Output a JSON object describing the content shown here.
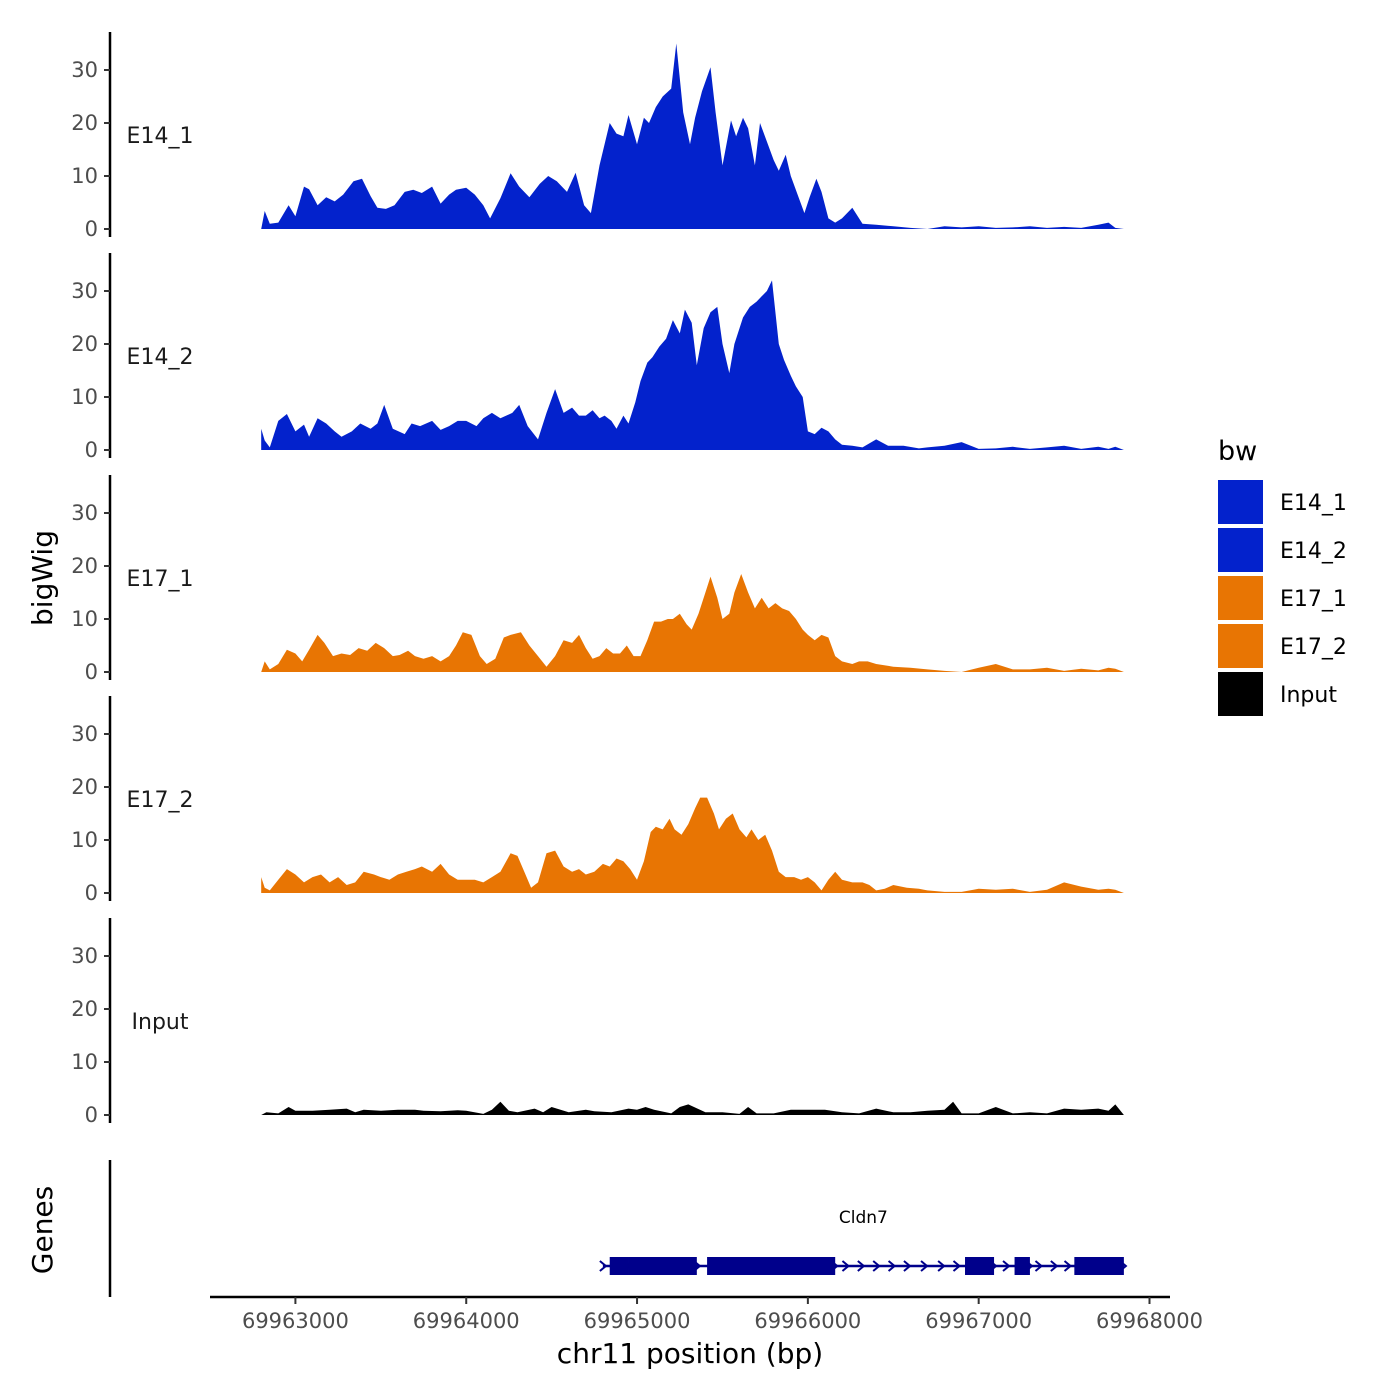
{
  "chart_data": {
    "type": "area",
    "xlabel": "chr11 position (bp)",
    "ylabel": "bigWig",
    "genes_label": "Genes",
    "xlim": [
      69962500,
      69968120
    ],
    "data_xrange": [
      69962800,
      69967850
    ],
    "ylim": [
      0,
      36
    ],
    "yticks": [
      0,
      10,
      20,
      30
    ],
    "xticks": [
      69963000,
      69964000,
      69965000,
      69966000,
      69967000,
      69968000
    ],
    "xtick_labels": [
      "69963000",
      "69964000",
      "69965000",
      "69966000",
      "69967000",
      "69968000"
    ],
    "legend": {
      "title": "bw",
      "items": [
        {
          "label": "E14_1",
          "color": "#0322cc"
        },
        {
          "label": "E14_2",
          "color": "#0322cc"
        },
        {
          "label": "E17_1",
          "color": "#e87503"
        },
        {
          "label": "E17_2",
          "color": "#e87503"
        },
        {
          "label": "Input",
          "color": "#000000"
        }
      ]
    },
    "series": [
      {
        "name": "E14_1",
        "color": "#0322cc",
        "x": [
          69962800,
          69962820,
          69962850,
          69962900,
          69962960,
          69963000,
          69963050,
          69963080,
          69963130,
          69963180,
          69963230,
          69963280,
          69963340,
          69963390,
          69963440,
          69963480,
          69963530,
          69963580,
          69963640,
          69963690,
          69963740,
          69963800,
          69963850,
          69963900,
          69963940,
          69964000,
          69964050,
          69964100,
          69964140,
          69964200,
          69964260,
          69964310,
          69964370,
          69964430,
          69964480,
          69964530,
          69964590,
          69964640,
          69964690,
          69964730,
          69964780,
          69964840,
          69964880,
          69964920,
          69964950,
          69965000,
          69965040,
          69965070,
          69965110,
          69965150,
          69965200,
          69965230,
          69965270,
          69965310,
          69965340,
          69965380,
          69965430,
          69965460,
          69965500,
          69965550,
          69965580,
          69965620,
          69965650,
          69965690,
          69965720,
          69965760,
          69965800,
          69965830,
          69965870,
          69965900,
          69965940,
          69965980,
          69966010,
          69966050,
          69966080,
          69966120,
          69966160,
          69966200,
          69966260,
          69966320,
          69966400,
          69966500,
          69966600,
          69966700,
          69966800,
          69966900,
          69967000,
          69967100,
          69967200,
          69967300,
          69967400,
          69967500,
          69967600,
          69967700,
          69967760,
          69967800,
          69967850
        ],
        "y": [
          0,
          3.4,
          1,
          1.2,
          4.5,
          2.4,
          8,
          7.5,
          4.5,
          6,
          5.2,
          6.5,
          9,
          9.5,
          6.2,
          4,
          3.8,
          4.5,
          7,
          7.4,
          6.8,
          8,
          4.8,
          6.5,
          7.4,
          7.8,
          6.5,
          4.5,
          2,
          5.8,
          10.5,
          8,
          6,
          8.5,
          10,
          9,
          7,
          10.6,
          4.5,
          3,
          12,
          20,
          18,
          17.5,
          21.5,
          16,
          21,
          20,
          23,
          25,
          26.5,
          35,
          22,
          16,
          21,
          26,
          30.5,
          22,
          12,
          20.5,
          17.5,
          21,
          19,
          12,
          20,
          16.5,
          13,
          11,
          14,
          10,
          6.5,
          3,
          6,
          9.5,
          7,
          2,
          1.2,
          2,
          4,
          1,
          0.8,
          0.5,
          0.2,
          0,
          0.5,
          0.3,
          0.5,
          0.2,
          0.3,
          0.5,
          0.2,
          0.4,
          0.2,
          0.8,
          1.2,
          0.2,
          0
        ]
      },
      {
        "name": "E14_2",
        "color": "#0322cc",
        "x": [
          69962800,
          69962820,
          69962850,
          69962900,
          69962950,
          69963000,
          69963050,
          69963080,
          69963130,
          69963180,
          69963230,
          69963270,
          69963330,
          69963380,
          69963440,
          69963480,
          69963520,
          69963570,
          69963640,
          69963680,
          69963730,
          69963800,
          69963850,
          69963900,
          69963950,
          69964000,
          69964060,
          69964100,
          69964150,
          69964200,
          69964270,
          69964310,
          69964360,
          69964420,
          69964470,
          69964520,
          69964570,
          69964620,
          69964660,
          69964700,
          69964740,
          69964780,
          69964810,
          69964850,
          69964880,
          69964920,
          69964950,
          69964990,
          69965020,
          69965060,
          69965090,
          69965130,
          69965170,
          69965210,
          69965250,
          69965280,
          69965320,
          69965350,
          69965390,
          69965430,
          69965470,
          69965500,
          69965540,
          69965570,
          69965620,
          69965660,
          69965700,
          69965730,
          69965760,
          69965790,
          69965830,
          69965860,
          69965900,
          69965930,
          69965970,
          69966000,
          69966040,
          69966080,
          69966120,
          69966160,
          69966200,
          69966260,
          69966320,
          69966400,
          69966470,
          69966560,
          69966650,
          69966700,
          69966800,
          69966900,
          69967000,
          69967100,
          69967200,
          69967300,
          69967400,
          69967500,
          69967600,
          69967700,
          69967760,
          69967800,
          69967850
        ],
        "y": [
          4,
          1.8,
          0.5,
          5.5,
          6.8,
          3.5,
          4.8,
          2.5,
          6,
          5,
          3.5,
          2.5,
          3.5,
          5,
          4,
          5,
          8.5,
          4,
          3,
          5,
          4.5,
          5.5,
          3.8,
          4.5,
          5.5,
          5.5,
          4.5,
          6,
          7,
          6,
          7,
          8.5,
          4.5,
          2,
          7,
          11.5,
          7,
          8,
          6.5,
          6.5,
          7.5,
          6,
          6.5,
          5.5,
          4,
          6.5,
          5,
          9,
          13,
          16.5,
          17.5,
          19.5,
          21,
          24.5,
          22,
          26.5,
          24,
          16,
          23,
          26,
          27,
          20,
          14.5,
          20,
          25,
          27,
          28,
          29,
          30,
          32,
          20,
          17,
          14,
          12,
          10,
          3.5,
          3,
          4.2,
          3.5,
          2,
          1,
          0.8,
          0.5,
          2,
          0.8,
          0.8,
          0.3,
          0.5,
          0.8,
          1.5,
          0.2,
          0.3,
          0.6,
          0.2,
          0.5,
          0.8,
          0.2,
          0.6,
          0.2,
          0.6,
          0
        ]
      },
      {
        "name": "E17_1",
        "color": "#e87503",
        "x": [
          69962800,
          69962820,
          69962850,
          69962900,
          69962950,
          69963000,
          69963040,
          69963080,
          69963130,
          69963170,
          69963220,
          69963270,
          69963320,
          69963370,
          69963420,
          69963470,
          69963520,
          69963570,
          69963610,
          69963660,
          69963700,
          69963750,
          69963800,
          69963850,
          69963900,
          69963940,
          69963980,
          69964030,
          69964080,
          69964120,
          69964170,
          69964220,
          69964260,
          69964320,
          69964370,
          69964420,
          69964470,
          69964520,
          69964570,
          69964620,
          69964660,
          69964700,
          69964740,
          69964780,
          69964820,
          69964860,
          69964900,
          69964940,
          69964980,
          69965020,
          69965060,
          69965100,
          69965140,
          69965180,
          69965210,
          69965250,
          69965290,
          69965320,
          69965360,
          69965400,
          69965430,
          69965470,
          69965500,
          69965540,
          69965570,
          69965610,
          69965650,
          69965690,
          69965730,
          69965770,
          69965810,
          69965850,
          69965890,
          69965930,
          69965970,
          69966000,
          69966040,
          69966080,
          69966120,
          69966160,
          69966200,
          69966260,
          69966300,
          69966350,
          69966400,
          69966500,
          69966600,
          69966700,
          69966800,
          69966900,
          69967000,
          69967100,
          69967200,
          69967300,
          69967400,
          69967500,
          69967600,
          69967700,
          69967760,
          69967800,
          69967850
        ],
        "y": [
          0,
          2,
          0.5,
          1.5,
          4.2,
          3.5,
          2,
          4.2,
          7,
          5.5,
          3,
          3.5,
          3.2,
          4.5,
          4,
          5.5,
          4.5,
          3,
          3.2,
          4,
          3,
          2.5,
          3,
          2,
          3,
          5,
          7.5,
          7,
          3,
          1.5,
          2.5,
          6.5,
          7,
          7.5,
          5,
          3,
          1,
          3,
          6,
          5.5,
          7,
          4.5,
          2.5,
          3,
          4.5,
          3.5,
          3.5,
          5,
          3,
          3,
          6,
          9.5,
          9.5,
          10,
          10,
          11,
          9,
          8,
          11,
          15,
          18,
          14,
          10,
          11,
          15,
          18.5,
          15,
          12,
          14,
          12,
          13,
          12,
          11.5,
          10,
          8,
          7,
          6,
          7,
          6.5,
          3,
          2,
          1.5,
          2,
          2,
          1.5,
          1,
          0.8,
          0.5,
          0.2,
          0,
          0.8,
          1.5,
          0.5,
          0.5,
          0.8,
          0.2,
          0.6,
          0.3,
          0.8,
          0.6,
          0
        ]
      },
      {
        "name": "E17_2",
        "color": "#e87503",
        "x": [
          69962800,
          69962820,
          69962850,
          69962900,
          69962950,
          69963000,
          69963050,
          69963100,
          69963150,
          69963200,
          69963250,
          69963300,
          69963350,
          69963400,
          69963460,
          69963500,
          69963550,
          69963600,
          69963650,
          69963700,
          69963740,
          69963800,
          69963850,
          69963900,
          69963950,
          69964000,
          69964050,
          69964100,
          69964150,
          69964200,
          69964260,
          69964300,
          69964340,
          69964380,
          69964420,
          69964470,
          69964520,
          69964570,
          69964620,
          69964660,
          69964700,
          69964750,
          69964800,
          69964840,
          69964880,
          69964920,
          69964960,
          69965000,
          69965040,
          69965080,
          69965110,
          69965150,
          69965190,
          69965220,
          69965260,
          69965300,
          69965340,
          69965370,
          69965410,
          69965450,
          69965480,
          69965520,
          69965560,
          69965600,
          69965640,
          69965670,
          69965710,
          69965750,
          69965790,
          69965830,
          69965870,
          69965920,
          69965960,
          69966000,
          69966040,
          69966080,
          69966120,
          69966160,
          69966200,
          69966260,
          69966320,
          69966360,
          69966400,
          69966450,
          69966500,
          69966580,
          69966650,
          69966700,
          69966800,
          69966900,
          69967000,
          69967100,
          69967200,
          69967300,
          69967400,
          69967500,
          69967600,
          69967700,
          69967760,
          69967800,
          69967850
        ],
        "y": [
          3,
          1,
          0.5,
          2.5,
          4.5,
          3.5,
          2,
          3,
          3.5,
          2,
          3,
          1.5,
          2,
          4,
          3.5,
          3,
          2.5,
          3.5,
          4,
          4.5,
          5,
          4,
          5.5,
          3.5,
          2.5,
          2.5,
          2.5,
          2,
          3,
          4,
          7.5,
          7,
          4,
          1,
          2,
          7.5,
          8,
          5,
          4,
          4.5,
          3.5,
          4,
          5.5,
          5,
          6.5,
          6,
          4.5,
          2.5,
          6,
          11.5,
          12.5,
          12,
          14,
          12,
          11,
          13,
          16,
          18,
          18,
          15,
          12,
          14,
          15,
          12,
          10.5,
          12,
          10,
          11,
          8,
          4,
          3,
          3,
          2.5,
          3,
          2,
          0.5,
          2.5,
          4,
          2.5,
          2,
          2,
          1.5,
          0.5,
          0.8,
          1.5,
          1,
          0.8,
          0.5,
          0.2,
          0.2,
          0.8,
          0.6,
          0.8,
          0.2,
          0.6,
          2,
          1.2,
          0.6,
          0.8,
          0.6,
          0
        ]
      },
      {
        "name": "Input",
        "color": "#000000",
        "x": [
          69962800,
          69962830,
          69962900,
          69962960,
          69963000,
          69963100,
          69963200,
          69963300,
          69963350,
          69963400,
          69963500,
          69963600,
          69963700,
          69963750,
          69963850,
          69963950,
          69964000,
          69964100,
          69964150,
          69964200,
          69964250,
          69964300,
          69964400,
          69964450,
          69964500,
          69964600,
          69964700,
          69964750,
          69964850,
          69964950,
          69965000,
          69965050,
          69965100,
          69965200,
          69965250,
          69965300,
          69965400,
          69965500,
          69965600,
          69965650,
          69965700,
          69965800,
          69965900,
          69966000,
          69966100,
          69966200,
          69966300,
          69966400,
          69966500,
          69966600,
          69966700,
          69966800,
          69966850,
          69966900,
          69967000,
          69967100,
          69967200,
          69967300,
          69967400,
          69967500,
          69967600,
          69967700,
          69967760,
          69967800,
          69967850
        ],
        "y": [
          0,
          0.5,
          0.3,
          1.5,
          0.8,
          0.8,
          1,
          1.2,
          0.5,
          1,
          0.8,
          1,
          1,
          0.8,
          0.7,
          0.9,
          0.8,
          0.2,
          1,
          2.5,
          0.8,
          0.5,
          1.2,
          0.5,
          1.5,
          0.5,
          1,
          0.7,
          0.5,
          1.2,
          1,
          1.5,
          1,
          0.3,
          1.5,
          2,
          0.5,
          0.5,
          0.2,
          1.5,
          0.3,
          0.3,
          1,
          1,
          1,
          0.5,
          0.3,
          1.2,
          0.5,
          0.5,
          0.8,
          1,
          2.5,
          0.3,
          0.3,
          1.5,
          0.3,
          0.5,
          0.3,
          1.2,
          1,
          1.2,
          0.8,
          2,
          0
        ]
      }
    ],
    "gene_track": {
      "name": "Cldn7",
      "color": "#00008b",
      "start": 69964800,
      "end": 69967850,
      "exons": [
        [
          69964840,
          69964950
        ],
        [
          69964950,
          69965350
        ],
        [
          69965410,
          69966160
        ],
        [
          69966920,
          69967090
        ],
        [
          69967210,
          69967300
        ],
        [
          69967560,
          69967850
        ]
      ],
      "arrow_positions": [
        69964800,
        69965350,
        69966220,
        69966310,
        69966400,
        69966490,
        69966580,
        69966680,
        69966780,
        69966870,
        69967160,
        69967350,
        69967440,
        69967520
      ]
    }
  }
}
